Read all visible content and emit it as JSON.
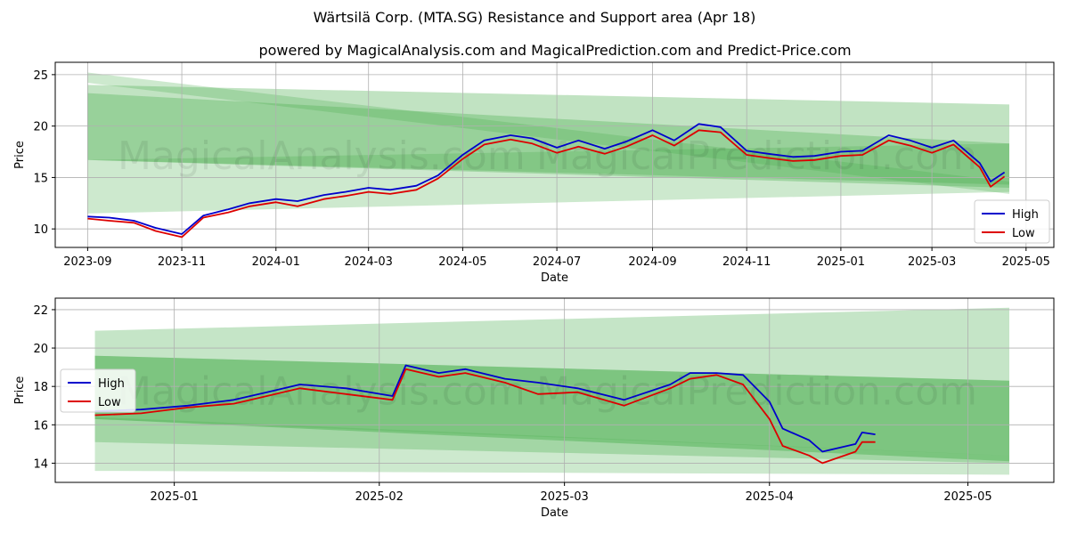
{
  "title": "Wärtsilä Corp. (MTA.SG) Resistance and Support area (Apr 18)",
  "subtitle": "powered by MagicalAnalysis.com and MagicalPrediction.com and Predict-Price.com",
  "watermarks": [
    "MagicalAnalysis.com",
    "MagicalPrediction.com"
  ],
  "colors": {
    "high": "#0000cc",
    "low": "#dd0000",
    "band": "#4caf50"
  },
  "chart_data": [
    {
      "type": "line",
      "xlabel": "Date",
      "ylabel": "Price",
      "xlim": [
        "2023-08-11",
        "2025-05-19"
      ],
      "ylim": [
        8.2,
        26.2
      ],
      "x_ticks": [
        "2023-09",
        "2023-11",
        "2024-01",
        "2024-03",
        "2024-05",
        "2024-07",
        "2024-09",
        "2024-11",
        "2025-01",
        "2025-03",
        "2025-05"
      ],
      "y_ticks": [
        10,
        15,
        20,
        25
      ],
      "grid": true,
      "legend": "bottom-right",
      "x": [
        "2023-09-01",
        "2023-09-15",
        "2023-10-01",
        "2023-10-15",
        "2023-11-01",
        "2023-11-15",
        "2023-12-01",
        "2023-12-15",
        "2024-01-01",
        "2024-01-15",
        "2024-02-01",
        "2024-02-15",
        "2024-03-01",
        "2024-03-15",
        "2024-04-01",
        "2024-04-15",
        "2024-05-01",
        "2024-05-15",
        "2024-06-01",
        "2024-06-15",
        "2024-07-01",
        "2024-07-15",
        "2024-08-01",
        "2024-08-15",
        "2024-09-01",
        "2024-09-15",
        "2024-10-01",
        "2024-10-15",
        "2024-11-01",
        "2024-11-15",
        "2024-12-01",
        "2024-12-15",
        "2025-01-01",
        "2025-01-15",
        "2025-02-01",
        "2025-02-15",
        "2025-03-01",
        "2025-03-15",
        "2025-04-01",
        "2025-04-08",
        "2025-04-17"
      ],
      "series": [
        {
          "name": "High",
          "values": [
            11.2,
            11.1,
            10.8,
            10.1,
            9.5,
            11.3,
            11.9,
            12.5,
            12.9,
            12.7,
            13.3,
            13.6,
            14.0,
            13.8,
            14.2,
            15.2,
            17.2,
            18.6,
            19.1,
            18.8,
            17.9,
            18.6,
            17.8,
            18.5,
            19.6,
            18.6,
            20.2,
            19.9,
            17.6,
            17.3,
            17.0,
            17.1,
            17.5,
            17.6,
            19.1,
            18.6,
            17.9,
            18.6,
            16.4,
            14.6,
            15.5
          ]
        },
        {
          "name": "Low",
          "values": [
            11.0,
            10.8,
            10.6,
            9.8,
            9.2,
            11.1,
            11.6,
            12.2,
            12.6,
            12.2,
            12.9,
            13.2,
            13.6,
            13.4,
            13.8,
            14.9,
            16.8,
            18.2,
            18.7,
            18.3,
            17.4,
            18.0,
            17.3,
            18.0,
            19.1,
            18.1,
            19.6,
            19.4,
            17.2,
            16.9,
            16.6,
            16.7,
            17.1,
            17.2,
            18.6,
            18.1,
            17.4,
            18.2,
            16.0,
            14.1,
            15.1
          ]
        }
      ]
    },
    {
      "type": "line",
      "xlabel": "Date",
      "ylabel": "Price",
      "xlim": [
        "2024-12-14",
        "2025-05-14"
      ],
      "ylim": [
        13.0,
        22.6
      ],
      "x_ticks": [
        "2025-01",
        "2025-02",
        "2025-03",
        "2025-04",
        "2025-05"
      ],
      "y_ticks": [
        14,
        16,
        18,
        20,
        22
      ],
      "grid": true,
      "legend": "upper-left",
      "x": [
        "2024-12-20",
        "2024-12-27",
        "2025-01-03",
        "2025-01-10",
        "2025-01-15",
        "2025-01-20",
        "2025-01-27",
        "2025-02-03",
        "2025-02-05",
        "2025-02-10",
        "2025-02-14",
        "2025-02-20",
        "2025-02-25",
        "2025-03-03",
        "2025-03-10",
        "2025-03-17",
        "2025-03-20",
        "2025-03-24",
        "2025-03-28",
        "2025-04-01",
        "2025-04-03",
        "2025-04-07",
        "2025-04-09",
        "2025-04-14",
        "2025-04-15",
        "2025-04-17"
      ],
      "series": [
        {
          "name": "High",
          "values": [
            16.7,
            16.8,
            17.0,
            17.3,
            17.7,
            18.1,
            17.9,
            17.5,
            19.1,
            18.7,
            18.9,
            18.4,
            18.2,
            17.9,
            17.3,
            18.1,
            18.7,
            18.7,
            18.6,
            17.2,
            15.8,
            15.2,
            14.6,
            15.0,
            15.6,
            15.5
          ]
        },
        {
          "name": "Low",
          "values": [
            16.5,
            16.6,
            16.9,
            17.1,
            17.5,
            17.9,
            17.6,
            17.3,
            18.9,
            18.5,
            18.7,
            18.2,
            17.6,
            17.7,
            17.0,
            17.9,
            18.4,
            18.6,
            18.1,
            16.3,
            14.9,
            14.4,
            14.0,
            14.6,
            15.1,
            15.1
          ]
        }
      ]
    }
  ]
}
